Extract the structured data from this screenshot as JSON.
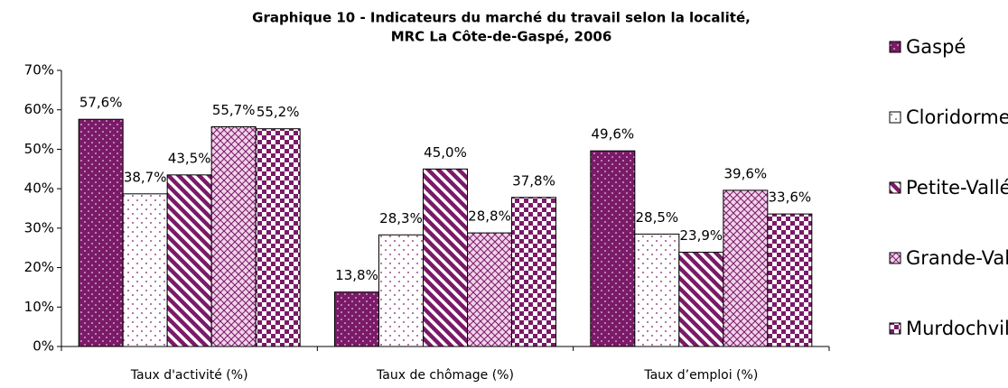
{
  "chart_data": {
    "type": "bar",
    "title": "Graphique 10 - Indicateurs du marché du travail selon la localité,",
    "subtitle": "MRC La Côte-de-Gaspé, 2006",
    "categories": [
      "Taux d'activité (%)",
      "Taux de chômage (%)",
      "Taux d’emploi (%)"
    ],
    "series": [
      {
        "name": "Gaspé",
        "color": "#7a1a68",
        "pattern": "dense-dots",
        "values": [
          57.6,
          13.8,
          49.6
        ],
        "value_labels": [
          "57,6%",
          "13,8%",
          "49,6%"
        ]
      },
      {
        "name": "Cloridorme",
        "color": "#7a1a68",
        "pattern": "dots",
        "values": [
          38.7,
          28.3,
          28.5
        ],
        "value_labels": [
          "38,7%",
          "28,3%",
          "28,5%"
        ]
      },
      {
        "name": "Petite-Vallée",
        "color": "#7a1a68",
        "pattern": "diagonal",
        "values": [
          43.5,
          45.0,
          23.9
        ],
        "value_labels": [
          "43,5%",
          "45,0%",
          "23,9%"
        ]
      },
      {
        "name": "Grande-Vallée",
        "color": "#7a1a68",
        "pattern": "crosshatch",
        "values": [
          55.7,
          28.8,
          39.6
        ],
        "value_labels": [
          "55,7%",
          "28,8%",
          "39,6%"
        ]
      },
      {
        "name": "Murdochville",
        "color": "#7a1a68",
        "pattern": "checker",
        "values": [
          55.2,
          37.8,
          33.6
        ],
        "value_labels": [
          "55,2%",
          "37,8%",
          "33,6%"
        ]
      }
    ],
    "ylim": [
      0,
      70
    ],
    "yticks": [
      {
        "value": 0,
        "label": "0%"
      },
      {
        "value": 10,
        "label": "10%"
      },
      {
        "value": 20,
        "label": "20%"
      },
      {
        "value": 30,
        "label": "30%"
      },
      {
        "value": 40,
        "label": "40%"
      },
      {
        "value": 50,
        "label": "50%"
      },
      {
        "value": 60,
        "label": "60%"
      },
      {
        "value": 70,
        "label": "70%"
      }
    ],
    "legend": "right"
  }
}
